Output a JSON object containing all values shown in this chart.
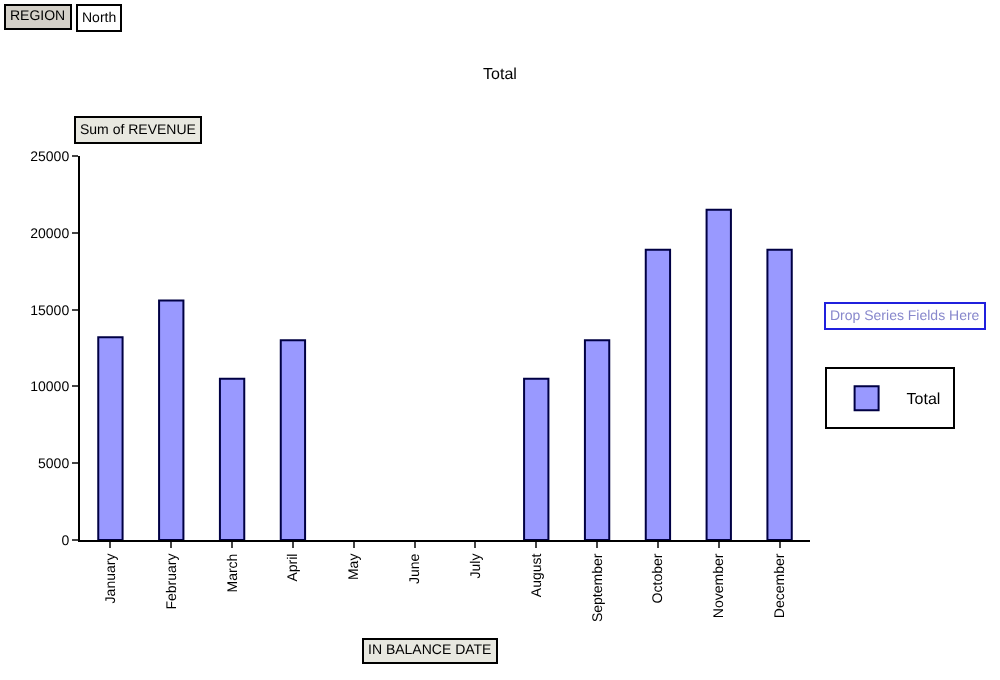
{
  "chart_data": {
    "type": "bar",
    "title": "Total",
    "categories": [
      "January",
      "February",
      "March",
      "April",
      "May",
      "June",
      "July",
      "August",
      "September",
      "October",
      "November",
      "December"
    ],
    "series": [
      {
        "name": "Total",
        "color": "#9999ff",
        "values": [
          13200,
          15600,
          10500,
          13000,
          null,
          null,
          null,
          10500,
          13000,
          18900,
          21500,
          18900
        ]
      }
    ],
    "ylim": [
      0,
      25000
    ],
    "yticks": [
      0,
      5000,
      10000,
      15000,
      20000,
      25000
    ],
    "grid": false,
    "legend": "right",
    "annotations": [
      "REGION",
      "North",
      "Sum of REVENUE",
      "IN BALANCE DATE",
      "Drop Series Fields Here"
    ]
  }
}
